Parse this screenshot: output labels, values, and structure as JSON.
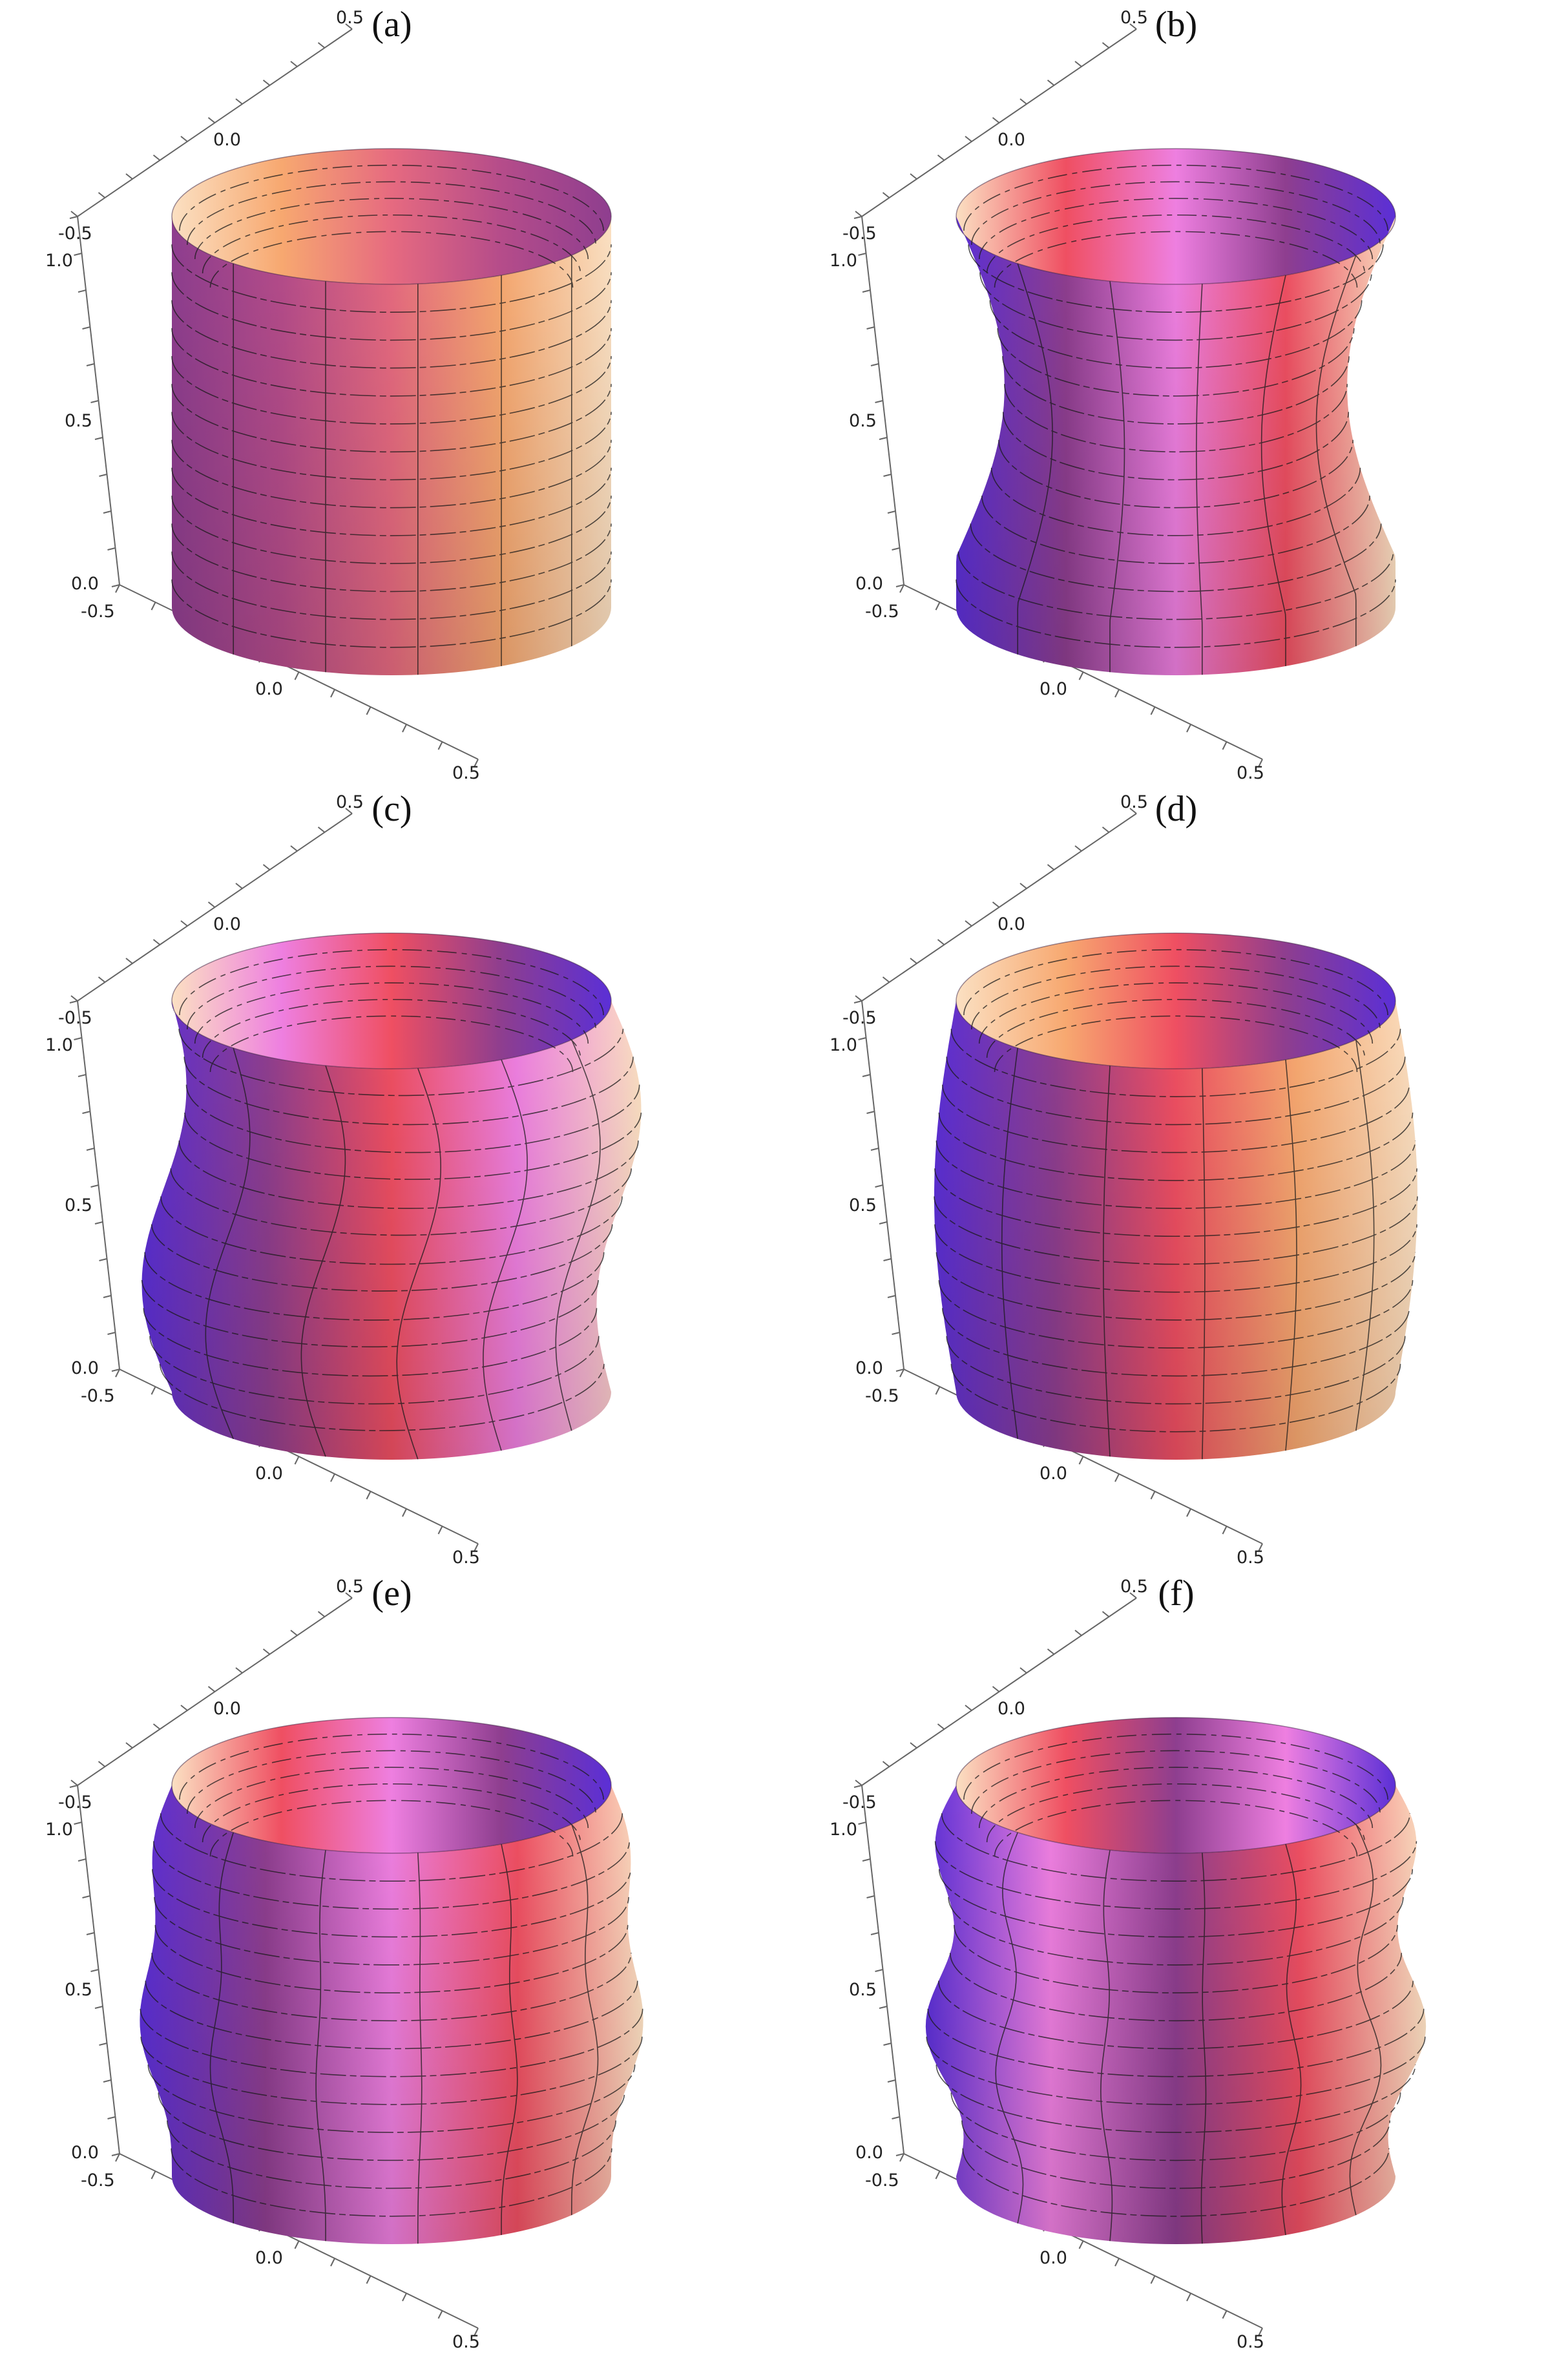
{
  "colors": {
    "purple": "#5b2fd6",
    "magenta": "#8e3e8f",
    "pink": "#ee7fe0",
    "red": "#ef4f62",
    "orange": "#f7a870",
    "cream": "#fbe0c2"
  },
  "panels": [
    {
      "id": "a",
      "label": "(a)",
      "ticks": {
        "upper_y": [
          "0.5",
          "0.0",
          "-0.5"
        ],
        "z": [
          "1.0",
          "0.5",
          "0.0"
        ],
        "lower_x": [
          "-0.5",
          "0.0",
          "0.5"
        ]
      },
      "shape": {
        "bulge": 0.0,
        "waist": 0.0,
        "shift": 0.0,
        "wave": 0
      },
      "stops": [
        "#8e3e8f",
        "#b54c8a",
        "#e66a80",
        "#f7a870",
        "#fbe0c2"
      ]
    },
    {
      "id": "b",
      "label": "(b)",
      "ticks": {
        "upper_y": [
          "0.5",
          "0.0",
          "-0.5"
        ],
        "z": [
          "1.0",
          "0.5",
          "0.0"
        ],
        "lower_x": [
          "-0.5",
          "0.0",
          "0.5"
        ]
      },
      "shape": {
        "bulge": 0.0,
        "waist": 0.22,
        "shift": 0.0,
        "wave": 0
      },
      "stops": [
        "#5b2fd6",
        "#8e3e8f",
        "#ee7fe0",
        "#ef4f62",
        "#fbe0c2"
      ]
    },
    {
      "id": "c",
      "label": "(c)",
      "ticks": {
        "upper_y": [
          "0.5",
          "0.0",
          "-0.5"
        ],
        "z": [
          "1.0",
          "0.5",
          "0.0"
        ],
        "lower_x": [
          "-0.5",
          "0.0",
          "0.5"
        ]
      },
      "shape": {
        "bulge": 0.05,
        "waist": 0.0,
        "shift": 0.1,
        "wave": 0
      },
      "stops": [
        "#5b2fd6",
        "#8e3e8f",
        "#ef4f62",
        "#ee7fe0",
        "#fbe0c2"
      ]
    },
    {
      "id": "d",
      "label": "(d)",
      "ticks": {
        "upper_y": [
          "0.5",
          "0.0",
          "-0.5"
        ],
        "z": [
          "1.0",
          "0.5",
          "0.0"
        ],
        "lower_x": [
          "-0.5",
          "0.0",
          "0.5"
        ]
      },
      "shape": {
        "bulge": 0.1,
        "waist": 0.0,
        "shift": 0.0,
        "wave": 0
      },
      "stops": [
        "#5b2fd6",
        "#8e3e8f",
        "#ef4f62",
        "#f7a870",
        "#fbe0c2"
      ]
    },
    {
      "id": "e",
      "label": "(e)",
      "ticks": {
        "upper_y": [
          "0.5",
          "0.0",
          "-0.5"
        ],
        "z": [
          "1.0",
          "0.5",
          "0.0"
        ],
        "lower_x": [
          "-0.5",
          "0.0",
          "0.5"
        ]
      },
      "shape": {
        "bulge": 0.12,
        "waist": 0.0,
        "shift": 0.0,
        "wave": 0.03
      },
      "stops": [
        "#5b2fd6",
        "#8e3e8f",
        "#ee7fe0",
        "#ef4f62",
        "#fbe0c2"
      ]
    },
    {
      "id": "f",
      "label": "(f)",
      "ticks": {
        "upper_y": [
          "0.5",
          "0.0",
          "-0.5"
        ],
        "z": [
          "1.0",
          "0.5",
          "0.0"
        ],
        "lower_x": [
          "-0.5",
          "0.0",
          "0.5"
        ]
      },
      "shape": {
        "bulge": 0.08,
        "waist": 0.0,
        "shift": 0.0,
        "wave": 0.06
      },
      "stops": [
        "#5b2fd6",
        "#ee7fe0",
        "#8e3e8f",
        "#ef4f62",
        "#fbe0c2"
      ]
    }
  ]
}
